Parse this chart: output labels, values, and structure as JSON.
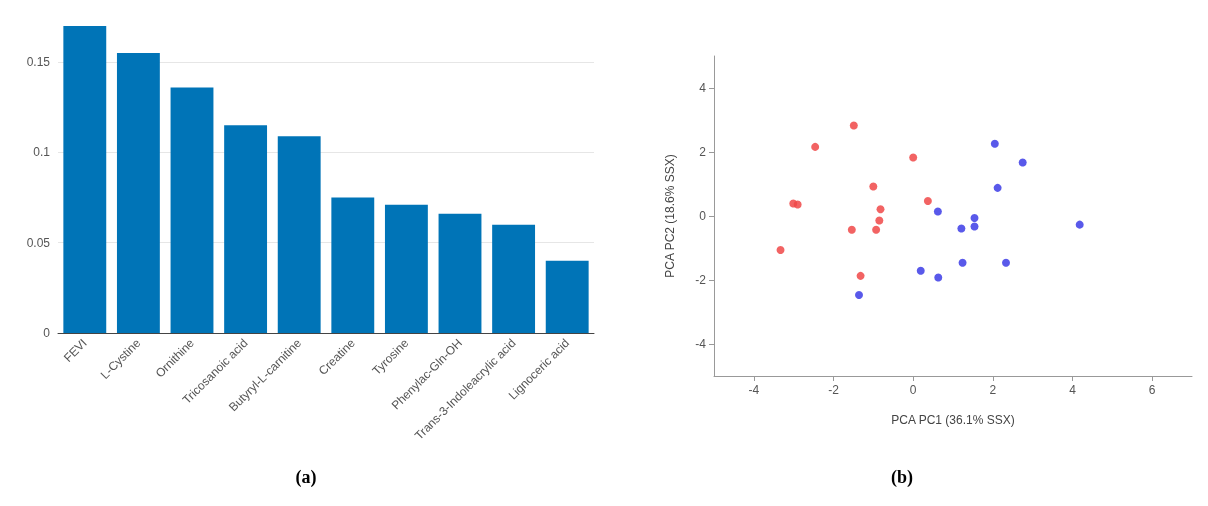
{
  "chart_data": [
    {
      "type": "bar",
      "categories": [
        "FEVI",
        "L-Cystine",
        "Ornithine",
        "Tricosanoic acid",
        "Butyryl-L-carnitine",
        "Creatine",
        "Tyrosine",
        "Phenylac-Gln-OH",
        "Trans-3-Indoleacrylic acid",
        "Lignoceric acid"
      ],
      "values": [
        0.17,
        0.155,
        0.136,
        0.115,
        0.109,
        0.075,
        0.071,
        0.066,
        0.06,
        0.04
      ],
      "color": "#0074b7",
      "ylim": [
        0,
        0.17
      ],
      "yticks": [
        0,
        0.05,
        0.1,
        0.15
      ],
      "grid": "y",
      "annotations": [
        "(a)"
      ]
    },
    {
      "type": "scatter",
      "xlabel": "PCA PC1 (36.1% SSX)",
      "ylabel": "PCA PC2 (18.6% SSX)",
      "marker": "circle",
      "grid": false,
      "xlim": [
        -5,
        7
      ],
      "xticks": [
        -4,
        -2,
        0,
        2,
        4,
        6
      ],
      "ylim": [
        -5,
        5
      ],
      "yticks": [
        -4,
        -2,
        0,
        2,
        4
      ],
      "annotations": [
        "(b)"
      ],
      "series": [
        {
          "color": "#f04848",
          "x": [
            -1.49,
            -2.46,
            0.0,
            -1.0,
            -3.01,
            -2.9,
            0.37,
            -0.82,
            -0.85,
            -1.54,
            -0.93,
            -3.33,
            -1.32
          ],
          "values": [
            2.83,
            2.16,
            1.83,
            0.92,
            0.39,
            0.36,
            0.47,
            0.21,
            -0.14,
            -0.43,
            -0.43,
            -1.06,
            -1.87
          ]
        },
        {
          "color": "#3c3ce6",
          "x": [
            2.05,
            2.75,
            2.12,
            0.62,
            1.54,
            1.54,
            1.21,
            4.18,
            1.24,
            2.33,
            0.19,
            0.63,
            -1.36
          ],
          "values": [
            2.26,
            1.67,
            0.88,
            0.14,
            -0.06,
            -0.33,
            -0.39,
            -0.27,
            -1.46,
            -1.46,
            -1.71,
            -1.92,
            -2.47
          ]
        }
      ]
    }
  ]
}
